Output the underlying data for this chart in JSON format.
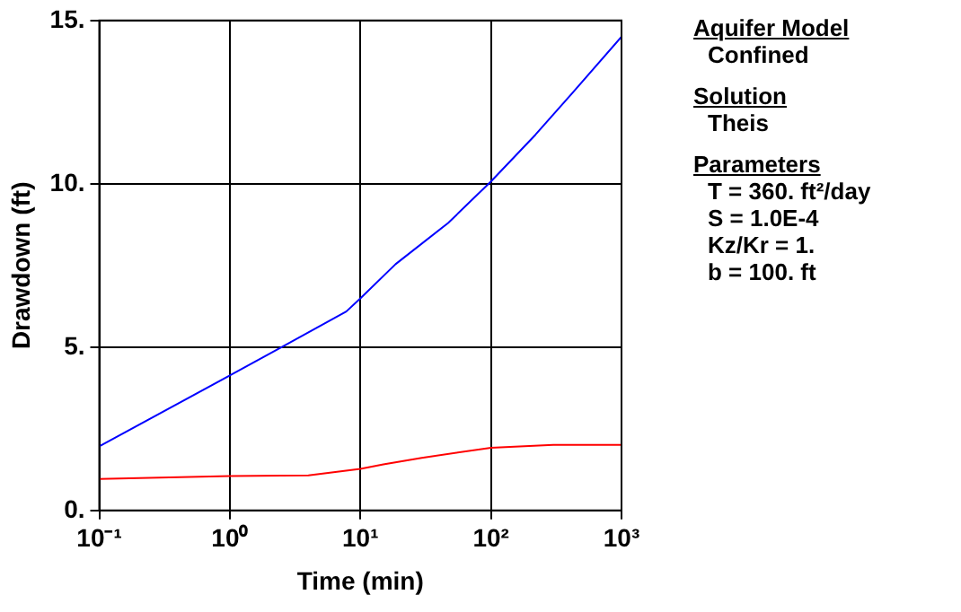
{
  "chart_data": {
    "type": "line",
    "xlabel": "Time (min)",
    "ylabel": "Drawdown (ft)",
    "log": "x",
    "xlim": [
      0.1,
      1000
    ],
    "xticks": [
      {
        "value": 0.1,
        "label": "10⁻¹"
      },
      {
        "value": 1,
        "label": "10⁰"
      },
      {
        "value": 10,
        "label": "10¹"
      },
      {
        "value": 100,
        "label": "10²"
      },
      {
        "value": 1000,
        "label": "10³"
      }
    ],
    "ylim": [
      0,
      15
    ],
    "yticks": [
      {
        "value": 0,
        "label": "0."
      },
      {
        "value": 5,
        "label": "5."
      },
      {
        "value": 10,
        "label": "10."
      },
      {
        "value": 15,
        "label": "15."
      }
    ],
    "grid": true,
    "marker": "none",
    "line_style": "solid",
    "series": [
      {
        "color": "#0000ff",
        "x": [
          0.1,
          1,
          2.6,
          7.8,
          10,
          18.6,
          47,
          100,
          219,
          425,
          1000
        ],
        "values": [
          1.96,
          4.13,
          5.04,
          6.09,
          6.49,
          7.54,
          8.8,
          10.07,
          11.5,
          12.8,
          14.5
        ]
      },
      {
        "color": "#ff0000",
        "x": [
          0.1,
          1,
          4,
          10,
          15,
          29.5,
          100,
          300,
          1000
        ],
        "values": [
          0.96,
          1.05,
          1.07,
          1.27,
          1.41,
          1.61,
          1.92,
          2.01,
          2.01
        ]
      }
    ],
    "annotations": [
      "Aquifer Model",
      "Confined",
      "Solution",
      "Theis",
      "Parameters",
      "T = 360. ft²/day",
      "S = 1.0E-4",
      "Kz/Kr = 1.",
      "b = 100. ft"
    ]
  }
}
